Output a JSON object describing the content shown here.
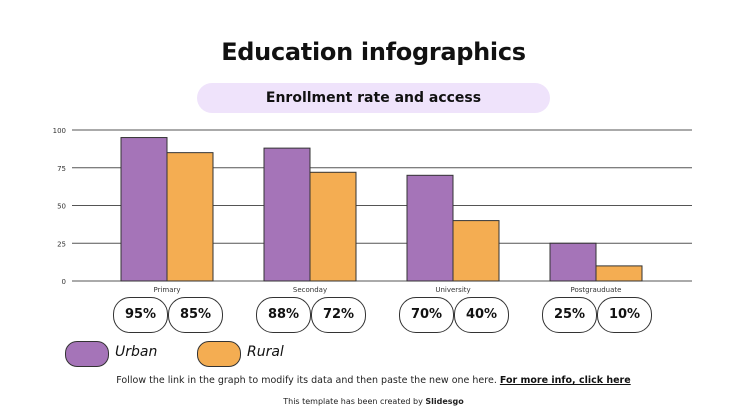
{
  "title": "Education infographics",
  "subtitle": "Enrollment rate and access",
  "chart_data": {
    "type": "bar",
    "categories": [
      "Primary",
      "Seconday",
      "University",
      "Postgrauduate"
    ],
    "series": [
      {
        "name": "Urban",
        "values": [
          95,
          88,
          70,
          25
        ],
        "color": "#a574b8"
      },
      {
        "name": "Rural",
        "values": [
          85,
          72,
          40,
          10
        ],
        "color": "#f4ad52"
      }
    ],
    "ylim": [
      0,
      100
    ],
    "yticks": [
      0,
      25,
      50,
      75,
      100
    ],
    "grid": true,
    "legend_position": "bottom-left",
    "data_labels": [
      [
        "95%",
        "85%"
      ],
      [
        "88%",
        "72%"
      ],
      [
        "70%",
        "40%"
      ],
      [
        "25%",
        "10%"
      ]
    ]
  },
  "legend": {
    "urban": "Urban",
    "rural": "Rural"
  },
  "footer": {
    "note": "Follow the link in the graph to modify its data and then paste the new one here.",
    "link": "For more info, click here",
    "credit_prefix": "This template has been created by",
    "credit_brand": "Slidesgo"
  }
}
